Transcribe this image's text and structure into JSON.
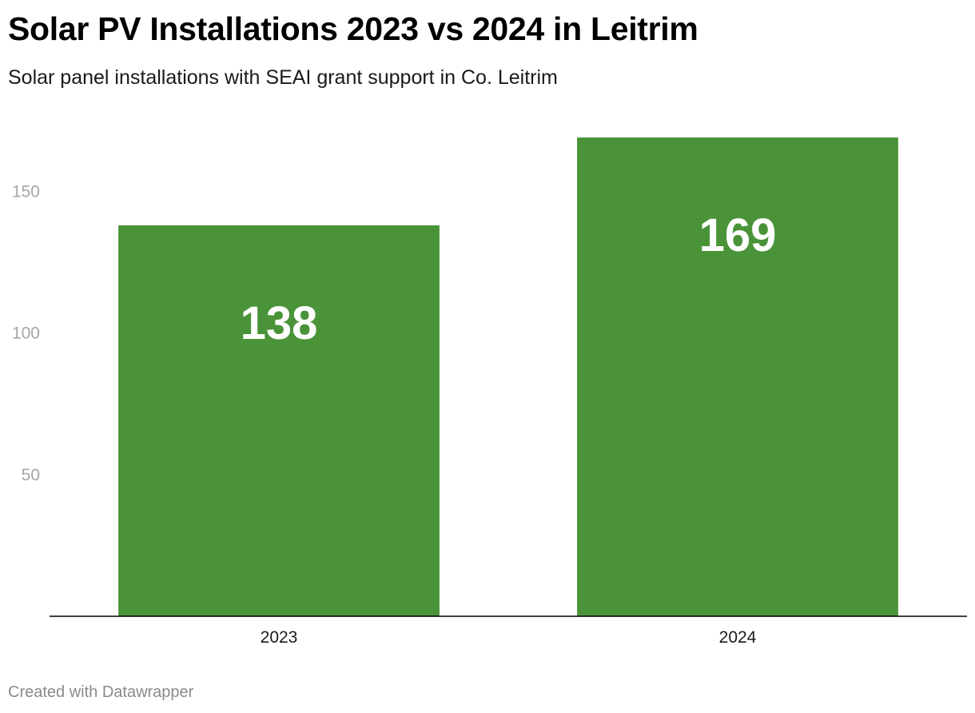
{
  "chart": {
    "title": "Solar PV Installations 2023 vs 2024 in Leitrim",
    "subtitle": "Solar panel installations with SEAI grant support in Co. Leitrim",
    "footer": "Created with Datawrapper"
  },
  "colors": {
    "bar": "#4a9339",
    "bar_label": "#ffffff",
    "tick_label": "#a6a6a6",
    "axis": "#000000",
    "category_label": "#1a1a1a"
  },
  "chart_data": {
    "type": "bar",
    "categories": [
      "2023",
      "2024"
    ],
    "values": [
      138,
      169
    ],
    "y_ticks": [
      50,
      100,
      150
    ],
    "ylim": [
      0,
      169
    ],
    "grid": false,
    "data_labels": true
  }
}
